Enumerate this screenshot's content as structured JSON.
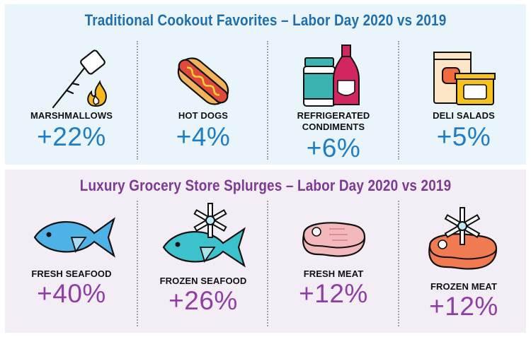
{
  "colors": {
    "cookout_accent": "#1f6fb0",
    "cookout_value": "#1f7dc6",
    "splurge_accent": "#7d3a94",
    "splurge_value": "#8f3ea6",
    "cookout_panel_bg": "#eaf5fb",
    "splurge_panel_bg": "#f3eef6"
  },
  "cookout": {
    "title": "Traditional Cookout Favorites – Labor Day 2020 vs 2019",
    "items": [
      {
        "label": "MARSHMALLOWS",
        "value": "+22%",
        "icon": "marshmallow-on-stick-icon"
      },
      {
        "label": "HOT DOGS",
        "value": "+4%",
        "icon": "hot-dog-icon"
      },
      {
        "label_line1": "REFRIGERATED",
        "label_line2": "CONDIMENTS",
        "value": "+6%",
        "icon": "condiment-jar-bottle-icon"
      },
      {
        "label": "DELI SALADS",
        "value": "+5%",
        "icon": "deli-containers-icon"
      }
    ]
  },
  "splurges": {
    "title": "Luxury Grocery Store Splurges – Labor Day 2020 vs 2019",
    "items": [
      {
        "label": "FRESH SEAFOOD",
        "value": "+40%",
        "icon": "fish-icon"
      },
      {
        "label": "FROZEN SEAFOOD",
        "value": "+26%",
        "icon": "frozen-fish-icon"
      },
      {
        "label": "FRESH MEAT",
        "value": "+12%",
        "icon": "steak-icon"
      },
      {
        "label": "FROZEN MEAT",
        "value": "+12%",
        "icon": "frozen-steak-icon"
      }
    ]
  }
}
